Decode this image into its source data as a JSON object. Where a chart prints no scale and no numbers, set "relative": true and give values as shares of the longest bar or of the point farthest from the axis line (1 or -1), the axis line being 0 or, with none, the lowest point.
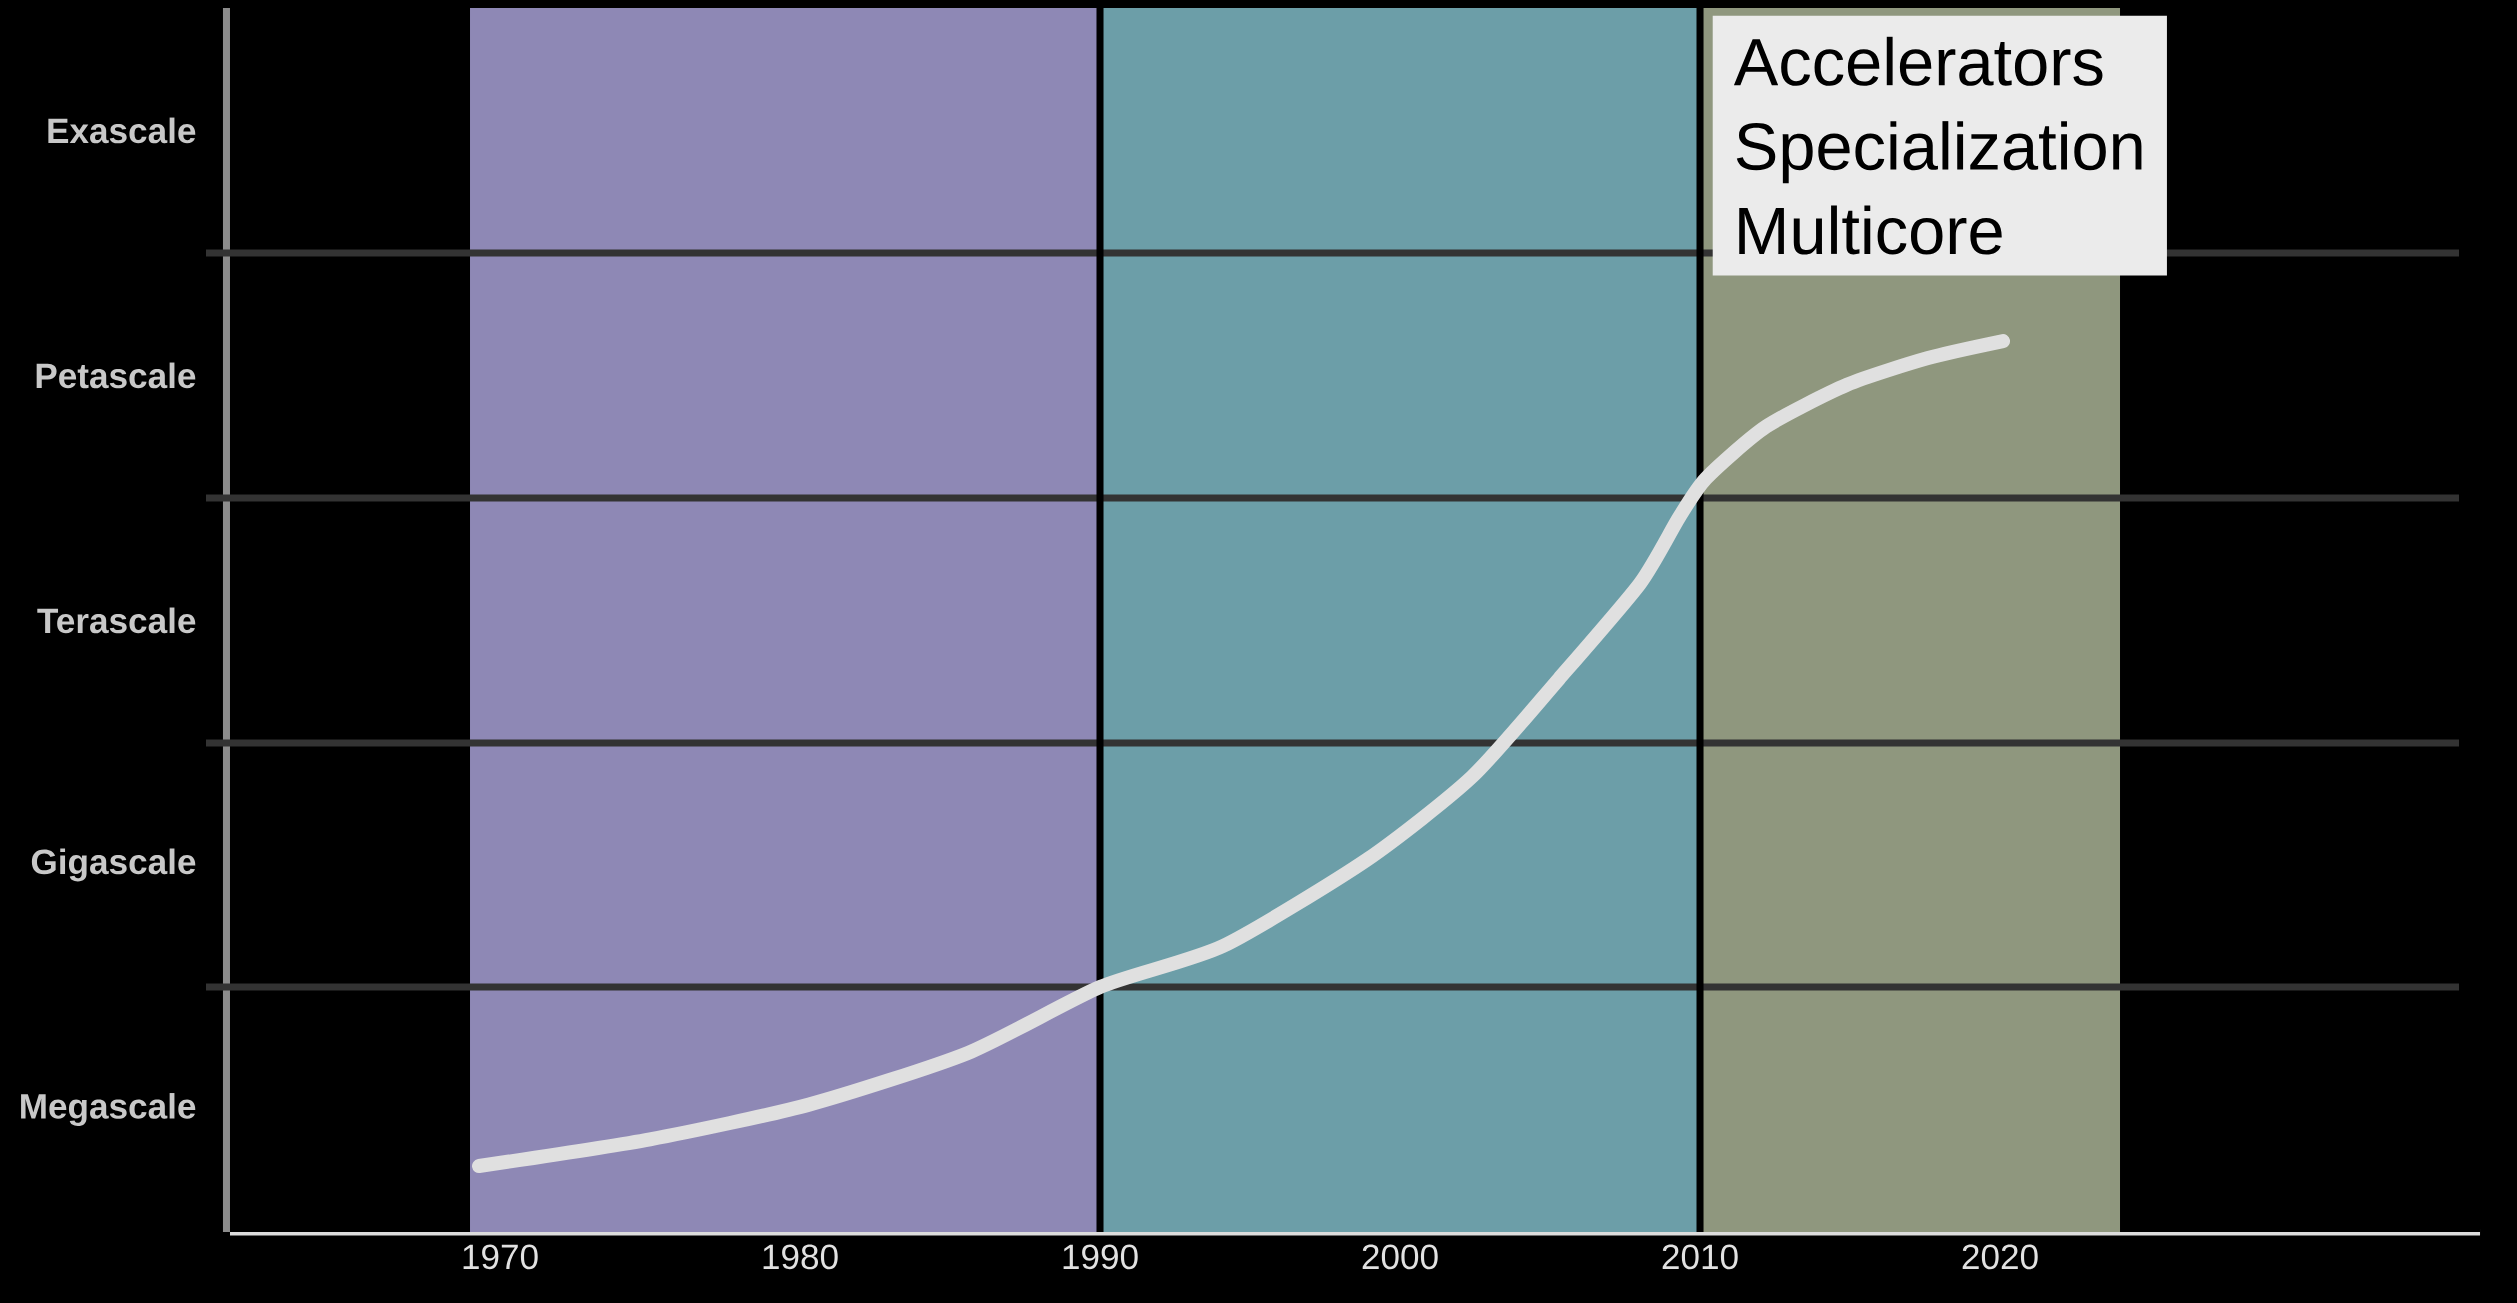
{
  "chart_data": {
    "type": "line",
    "relative": true,
    "series": [
      {
        "color": "#e0e0e0",
        "x": [
          1969.3,
          1975,
          1980.3,
          1985.6,
          1990,
          1994.1,
          1998.9,
          2002.4,
          2005.3,
          2008,
          2009.3,
          2010.2,
          2012.2,
          2014.9,
          2017.6,
          2020.1
        ],
        "values": [
          0.074,
          0.104,
          0.143,
          0.201,
          0.275,
          0.321,
          0.418,
          0.511,
          0.621,
          0.728,
          0.802,
          0.846,
          0.904,
          0.951,
          0.981,
          1.0
        ]
      }
    ],
    "xlim": [
      1961,
      2036
    ],
    "xticks": [
      1970,
      1980,
      1990,
      2000,
      2010,
      2020
    ],
    "bands": [
      {
        "axis": "x",
        "from": 1969,
        "to": 1990,
        "color": "#8e88b5"
      },
      {
        "axis": "x",
        "from": 1990,
        "to": 2010,
        "color": "#6c9ea8"
      },
      {
        "axis": "x",
        "from": 2010,
        "to": 2024,
        "color": "#8f977e"
      },
      {
        "axis": "y",
        "from": 0,
        "to": 0.275,
        "label": "Megascale",
        "color": "#000000"
      },
      {
        "axis": "y",
        "from": 0.275,
        "to": 0.549,
        "label": "Gigascale",
        "color": "#000000"
      },
      {
        "axis": "y",
        "from": 0.549,
        "to": 0.824,
        "label": "Terascale",
        "color": "#000000"
      },
      {
        "axis": "y",
        "from": 0.824,
        "to": 1.099,
        "label": "Petascale",
        "color": "#000000"
      },
      {
        "axis": "y",
        "from": 1.099,
        "to": 1.374,
        "label": "Exascale",
        "color": "#000000"
      }
    ],
    "ref_lines": [
      {
        "axis": "x",
        "value": 1990,
        "color": "#000000"
      },
      {
        "axis": "x",
        "value": 2010,
        "color": "#000000"
      }
    ],
    "annotations": [
      "Accelerators",
      "Specialization",
      "Multicore"
    ],
    "line_style": "solid"
  }
}
